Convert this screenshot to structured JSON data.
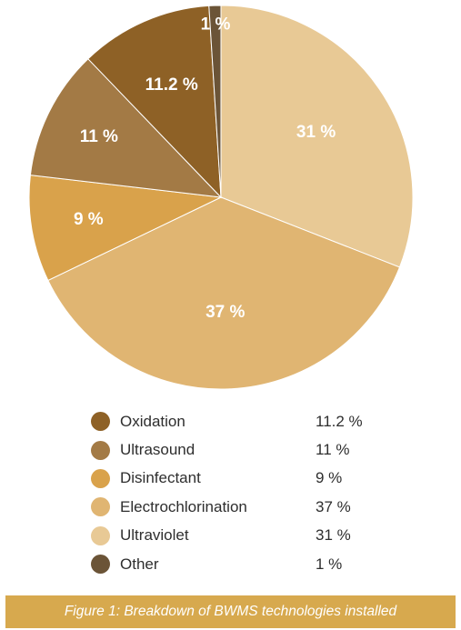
{
  "chart_data": {
    "type": "pie",
    "title": "",
    "slices": [
      {
        "label": "Ultraviolet",
        "value": 31,
        "display": "31 %",
        "color": "#e8c995"
      },
      {
        "label": "Electrochlorination",
        "value": 37,
        "display": "37 %",
        "color": "#e0b572"
      },
      {
        "label": "Disinfectant",
        "value": 9,
        "display": "9 %",
        "color": "#d9a24b"
      },
      {
        "label": "Ultrasound",
        "value": 11,
        "display": "11 %",
        "color": "#a37a45"
      },
      {
        "label": "Oxidation",
        "value": 11.2,
        "display": "11.2 %",
        "color": "#8e6126"
      },
      {
        "label": "Other",
        "value": 1,
        "display": "1 %",
        "color": "#6b5437"
      }
    ],
    "legend": [
      {
        "label": "Oxidation",
        "display": "11.2 %",
        "color": "#8e6126"
      },
      {
        "label": "Ultrasound",
        "display": "11 %",
        "color": "#a37a45"
      },
      {
        "label": "Disinfectant",
        "display": "9 %",
        "color": "#d9a24b"
      },
      {
        "label": "Electrochlorination",
        "display": "37 %",
        "color": "#e0b572"
      },
      {
        "label": "Ultraviolet",
        "display": "31 %",
        "color": "#e8c995"
      },
      {
        "label": "Other",
        "display": "1 %",
        "color": "#6b5437"
      }
    ]
  },
  "caption": "Figure 1: Breakdown of BWMS technologies installed"
}
